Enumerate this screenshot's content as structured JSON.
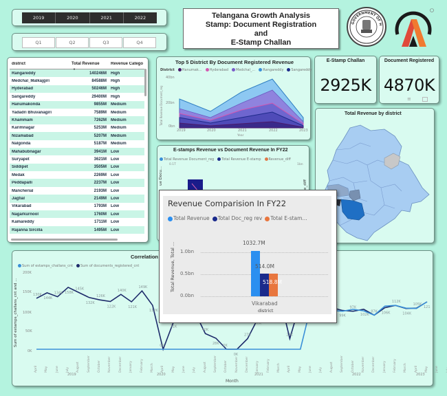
{
  "slicers": {
    "years": [
      "2019",
      "2020",
      "2021",
      "2022"
    ],
    "quarters": [
      "Q1",
      "Q2",
      "Q3",
      "Q4"
    ]
  },
  "header": {
    "title_lines": [
      "Telangana Growth Analysis",
      "Stamp: Document Registration",
      "and",
      "E-Stamp Challan"
    ],
    "govt_logo_text": "GOVERNMENT OF HYDERABAD",
    "brand_logo": "A"
  },
  "table": {
    "columns": [
      "district",
      "Total Revenue",
      "Revenue Catego"
    ],
    "rows": [
      [
        "Rangareddy",
        "140246M",
        "High"
      ],
      [
        "Medchal_Malkajgiri",
        "84588M",
        "High"
      ],
      [
        "Hyderabad",
        "50246M",
        "High"
      ],
      [
        "Sangareddy",
        "29400M",
        "High"
      ],
      [
        "Hanumakonda",
        "9855M",
        "Medium"
      ],
      [
        "Yadadri Bhuvanagiri",
        "7589M",
        "Medium"
      ],
      [
        "Khammam",
        "7262M",
        "Medium"
      ],
      [
        "Karimnagar",
        "5253M",
        "Medium"
      ],
      [
        "Nizamabad",
        "5207M",
        "Medium"
      ],
      [
        "Nalgonda",
        "5187M",
        "Medium"
      ],
      [
        "Mahabubnagar",
        "3941M",
        "Low"
      ],
      [
        "Suryapet",
        "3621M",
        "Low"
      ],
      [
        "Siddipet",
        "3505M",
        "Low"
      ],
      [
        "Medak",
        "2269M",
        "Low"
      ],
      [
        "Peddapalli",
        "2237M",
        "Low"
      ],
      [
        "Mancherial",
        "2193M",
        "Low"
      ],
      [
        "Jagtial",
        "2149M",
        "Low"
      ],
      [
        "Vikarabad",
        "1793M",
        "Low"
      ],
      [
        "Nagarkurnool",
        "1760M",
        "Low"
      ],
      [
        "Kamareddy",
        "1711M",
        "Low"
      ],
      [
        "Rajanna Sircilla",
        "1495M",
        "Low"
      ]
    ]
  },
  "top5": {
    "title": "Top 5 District By Document Registered Revenue",
    "legend_label": "District",
    "legend": [
      {
        "name": "Hanumak...",
        "color": "#4a1a6b"
      },
      {
        "name": "Hyderabad",
        "color": "#d457b0"
      },
      {
        "name": "Medchal_...",
        "color": "#7a5cc9"
      },
      {
        "name": "Rangareddy",
        "color": "#3a8fd8"
      },
      {
        "name": "Sangareddy",
        "color": "#1d2a8a"
      }
    ],
    "y_ticks": [
      "40bn",
      "20bn",
      "0bn"
    ],
    "x_ticks": [
      "2019",
      "2020",
      "2021",
      "2022",
      "2023"
    ],
    "xlabel": "Year",
    "ylabel": "Total Revenue Document_reg"
  },
  "kpis": [
    {
      "label": "E-Stamp Challan",
      "value": "2925K"
    },
    {
      "label": "Document Registered",
      "value": "4870K"
    }
  ],
  "map": {
    "title": "Total Revenue by district"
  },
  "estamps_chart": {
    "title": "E-stamps Revenue vs Document Revenue In FY22",
    "legend": [
      {
        "name": "Total Revenue Document_reg",
        "color": "#3a8fd8"
      },
      {
        "name": "Total Revenue E-stamp",
        "color": "#1d2a8a"
      },
      {
        "name": "Revenue_diff",
        "color": "#e07a4a"
      }
    ],
    "y_left_tick": "0.1T",
    "y_right_tick": "1bn",
    "ylabel_left": "ue Docu...",
    "ylabel_right": "e_diff"
  },
  "popup": {
    "title": "Revenue Comparision In FY22",
    "legend": [
      {
        "name": "Total Revenue",
        "color": "#2b8ff0"
      },
      {
        "name": "Total Doc_reg rev",
        "color": "#1a2a8c"
      },
      {
        "name": "Total E-stam...",
        "color": "#e8763e"
      }
    ],
    "ylabel": "Total Revenue, Total ...",
    "y_ticks": [
      "1.0bn",
      "0.5bn",
      "0.0bn"
    ],
    "category": "Vikarabad",
    "xlabel": "district",
    "labels": [
      "1032.7M",
      "514.0M",
      "518.8M"
    ]
  },
  "correlation": {
    "title": "Correlation",
    "legend": [
      {
        "name": "Sum of estamps_challans_cnt",
        "color": "#3a8fd8"
      },
      {
        "name": "Sum of documents_registered_cnt",
        "color": "#1d2a6a"
      }
    ],
    "ylabel": "Sum of estamps_challans_cnt and ...",
    "y_ticks": [
      "200K",
      "150K",
      "100K",
      "50K",
      "0K"
    ],
    "xlabel": "Month",
    "months": [
      "April",
      "May",
      "June",
      "July",
      "August",
      "September",
      "October",
      "November",
      "December",
      "January",
      "February",
      "March",
      "April",
      "May",
      "June",
      "July",
      "August",
      "September",
      "October",
      "November",
      "December",
      "January",
      "February",
      "March",
      "April",
      "May",
      "June",
      "July",
      "August",
      "September",
      "October",
      "November",
      "December",
      "January",
      "February",
      "March",
      "April",
      "May",
      "June",
      "July",
      "August",
      "September",
      "October",
      "November",
      "December",
      "January",
      "February",
      "March"
    ],
    "year_labels": [
      "2019",
      "2020",
      "2021",
      "2022",
      "2023"
    ]
  },
  "chart_data": [
    {
      "type": "area",
      "title": "Top 5 District By Document Registered Revenue",
      "categories": [
        "2019",
        "2020",
        "2021",
        "2022",
        "2023"
      ],
      "xlabel": "Year",
      "ylabel": "Total Revenue Document_reg",
      "ylim": [
        0,
        40
      ],
      "series": [
        {
          "name": "Rangareddy",
          "values": [
            18,
            12,
            29,
            39,
            9
          ]
        },
        {
          "name": "Medchal_Malkajgiri",
          "values": [
            10,
            7,
            18,
            24,
            6
          ]
        },
        {
          "name": "Hyderabad",
          "values": [
            6,
            5,
            10,
            14,
            4
          ]
        },
        {
          "name": "Sangareddy",
          "values": [
            4,
            3,
            6,
            8,
            2
          ]
        },
        {
          "name": "Hanumakonda",
          "values": [
            1.5,
            1,
            2,
            3,
            1
          ]
        }
      ]
    },
    {
      "type": "bar",
      "title": "Revenue Comparision In FY22",
      "categories": [
        "Vikarabad"
      ],
      "xlabel": "district",
      "ylabel": "Total Revenue, Total ...",
      "ylim": [
        0,
        1.0
      ],
      "series": [
        {
          "name": "Total Revenue",
          "values": [
            1032.7
          ]
        },
        {
          "name": "Total Doc_reg rev",
          "values": [
            514.0
          ]
        },
        {
          "name": "Total E-stam...",
          "values": [
            518.8
          ]
        }
      ]
    },
    {
      "type": "line",
      "title": "Correlation",
      "xlabel": "Month",
      "ylim": [
        0,
        200
      ],
      "series": [
        {
          "name": "Sum of documents_registered_cnt",
          "values_k": [
            130,
            144,
            134,
            158,
            145,
            132,
            126,
            122,
            140,
            121,
            149,
            112,
            0,
            71,
            138,
            95,
            40,
            28,
            0,
            0,
            27,
            80,
            120,
            140,
            27,
            120,
            110,
            110,
            106,
            99,
            97,
            102,
            87,
            106,
            112,
            104,
            105,
            121
          ]
        },
        {
          "name": "Sum of estamps_challans_cnt",
          "values_k": [
            0,
            0,
            0,
            0,
            0,
            0,
            0,
            0,
            0,
            0,
            0,
            0,
            0,
            0,
            0,
            0,
            0,
            0,
            0,
            0,
            0,
            0,
            0,
            0,
            0,
            0,
            110,
            106,
            99,
            97,
            102,
            98,
            87,
            110,
            112,
            105,
            104,
            121
          ]
        }
      ]
    }
  ]
}
